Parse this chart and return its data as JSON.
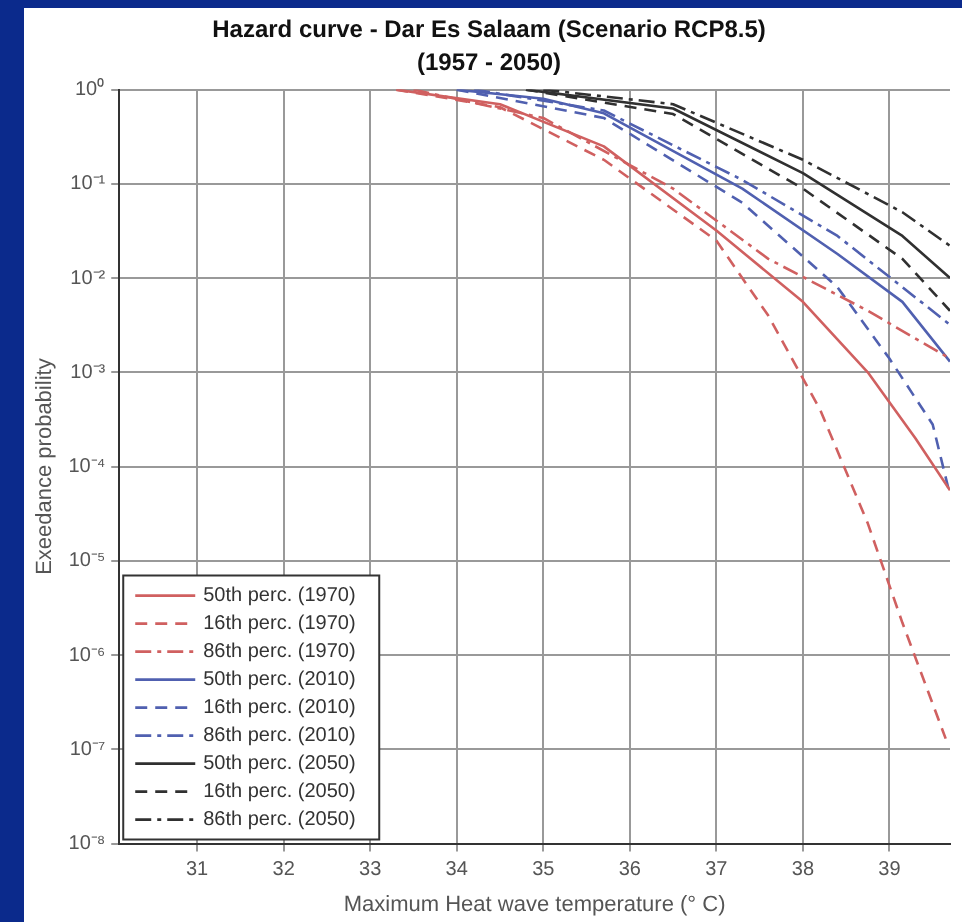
{
  "chart_data": {
    "type": "line",
    "title": "Hazard curve - Dar Es Salaam (Scenario RCP8.5)",
    "subtitle": "(1957 - 2050)",
    "xlabel": "Maximum Heat wave temperature (° C)",
    "ylabel": "Exeedance probability",
    "log": "y",
    "grid": true,
    "legend": "bottom left",
    "marker": "none",
    "xlim": [
      30.1,
      39.7
    ],
    "xticks": [
      31,
      32,
      33,
      34,
      35,
      36,
      37,
      38,
      39
    ],
    "ylim": [
      1e-08,
      1
    ],
    "yticks": [
      {
        "value": 1,
        "label": "10⁰"
      },
      {
        "value": 0.1,
        "label": "10⁻¹"
      },
      {
        "value": 0.01,
        "label": "10⁻²"
      },
      {
        "value": 0.001,
        "label": "10⁻³"
      },
      {
        "value": 0.0001,
        "label": "10⁻⁴"
      },
      {
        "value": 1e-05,
        "label": "10⁻⁵"
      },
      {
        "value": 1e-06,
        "label": "10⁻⁶"
      },
      {
        "value": 1e-07,
        "label": "10⁻⁷"
      },
      {
        "value": 1e-08,
        "label": "10⁻⁸"
      }
    ],
    "series": [
      {
        "name": "50th perc. (1970)",
        "color": "#d06060",
        "line_style": "solid",
        "x": [
          33.3,
          34.5,
          35.7,
          37.0,
          38.0,
          38.75,
          39.3,
          39.7
        ],
        "values": [
          1,
          0.7,
          0.25,
          0.032,
          0.0056,
          0.001,
          0.0002,
          5.6e-05
        ]
      },
      {
        "name": "16th perc. (1970)",
        "color": "#d06060",
        "line_style": "dashed",
        "x": [
          33.3,
          34.5,
          35.7,
          37.0,
          37.6,
          38.2,
          38.75,
          39.15,
          39.65
        ],
        "values": [
          1,
          0.65,
          0.18,
          0.025,
          0.004,
          0.0004,
          2.5e-05,
          2.2e-06,
          1.3e-07
        ]
      },
      {
        "name": "86th perc. (1970)",
        "color": "#d06060",
        "line_style": "dashdot",
        "x": [
          33.5,
          35,
          36.5,
          37.6,
          38.75,
          39.7
        ],
        "values": [
          1,
          0.5,
          0.089,
          0.016,
          0.0045,
          0.0014
        ]
      },
      {
        "name": "50th perc. (2010)",
        "color": "#5060b0",
        "line_style": "solid",
        "x": [
          34,
          35,
          35.7,
          37.3,
          38.4,
          39.15,
          39.7
        ],
        "values": [
          1,
          0.8,
          0.56,
          0.089,
          0.018,
          0.0056,
          0.0013
        ]
      },
      {
        "name": "16th perc. (2010)",
        "color": "#5060b0",
        "line_style": "dashed",
        "x": [
          34,
          35.7,
          37.3,
          38.4,
          39.0,
          39.5,
          39.7
        ],
        "values": [
          1,
          0.5,
          0.063,
          0.008,
          0.0014,
          0.00028,
          5e-05
        ]
      },
      {
        "name": "86th perc. (2010)",
        "color": "#5060b0",
        "line_style": "dashdot",
        "x": [
          34.2,
          35.7,
          37.3,
          38.4,
          39.7
        ],
        "values": [
          1,
          0.6,
          0.11,
          0.028,
          0.0032
        ]
      },
      {
        "name": "50th perc. (2050)",
        "color": "#303030",
        "line_style": "solid",
        "x": [
          34.8,
          36.5,
          38,
          39.15,
          39.7
        ],
        "values": [
          1,
          0.63,
          0.13,
          0.028,
          0.01
        ]
      },
      {
        "name": "16th perc. (2050)",
        "color": "#303030",
        "line_style": "dashed",
        "x": [
          34.8,
          36.5,
          38,
          39.15,
          39.7
        ],
        "values": [
          1,
          0.55,
          0.089,
          0.016,
          0.0045
        ]
      },
      {
        "name": "86th perc. (2050)",
        "color": "#303030",
        "line_style": "dashdot",
        "x": [
          35,
          36.5,
          38,
          39.15,
          39.7
        ],
        "values": [
          1,
          0.7,
          0.18,
          0.05,
          0.022
        ]
      }
    ]
  }
}
